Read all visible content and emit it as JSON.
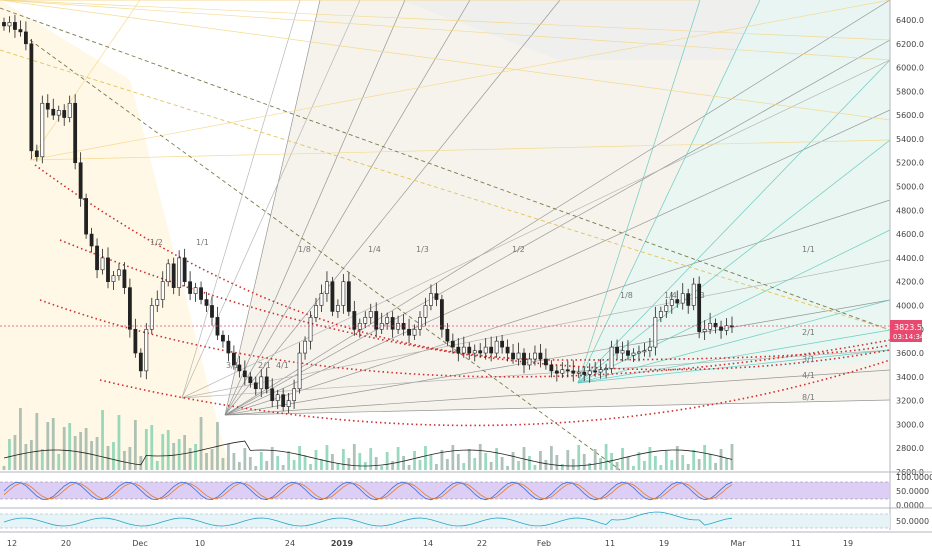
{
  "chart_data": {
    "type": "candlestick",
    "title": "",
    "price_axis": {
      "ticks": [
        "6400.0",
        "6200.0",
        "6000.0",
        "5800.0",
        "5600.0",
        "5400.0",
        "5200.0",
        "5000.0",
        "4800.0",
        "4600.0",
        "4400.0",
        "4200.0",
        "4000.0",
        "3800.0",
        "3600.0",
        "3400.0",
        "3200.0",
        "3000.0",
        "2800.0",
        "2600.0"
      ],
      "range": [
        2600,
        6500
      ],
      "last_price": "3823.5",
      "countdown": "03:14:34",
      "last_price_color": "#e84a6f"
    },
    "time_axis": {
      "ticks": [
        "12",
        "20",
        "Dec",
        "10",
        "24",
        "2019",
        "14",
        "22",
        "Feb",
        "11",
        "19",
        "Mar",
        "11",
        "19"
      ],
      "bold_tick": "2019"
    },
    "candles_close": [
      6350,
      6380,
      6320,
      6300,
      6200,
      5300,
      5250,
      5700,
      5650,
      5600,
      5640,
      5580,
      5700,
      5200,
      4900,
      4600,
      4500,
      4300,
      4400,
      4200,
      4250,
      4300,
      4150,
      3800,
      3600,
      3450,
      3800,
      4000,
      4050,
      4200,
      4350,
      4150,
      4400,
      4200,
      4100,
      4150,
      4050,
      4000,
      3900,
      3750,
      3700,
      3600,
      3500,
      3450,
      3400,
      3350,
      3300,
      3400,
      3300,
      3200,
      3250,
      3150,
      3200,
      3300,
      3600,
      3700,
      3900,
      4000,
      4100,
      4200,
      3950,
      4000,
      4200,
      3950,
      3800,
      3850,
      3900,
      3950,
      3800,
      3850,
      3900,
      3800,
      3850,
      3800,
      3750,
      3800,
      3900,
      4000,
      4100,
      4050,
      3800,
      3700,
      3650,
      3600,
      3650,
      3600,
      3620,
      3600,
      3650,
      3600,
      3700,
      3650,
      3600,
      3550,
      3600,
      3500,
      3550,
      3600,
      3550,
      3500,
      3450,
      3430,
      3460,
      3450,
      3430,
      3440,
      3420,
      3450,
      3440,
      3460,
      3470,
      3650,
      3600,
      3620,
      3580,
      3600,
      3610,
      3620,
      3650,
      3900,
      3950,
      4000,
      4050,
      4020,
      4100,
      4000,
      4180,
      3780,
      3800,
      3850,
      3820,
      3790,
      3830,
      3823.5
    ],
    "fan_labels": [
      "1/8",
      "1/4",
      "1/3",
      "1/2",
      "1/1",
      "1/8",
      "1/4",
      "1/3",
      "2/1",
      "3/1",
      "4/1",
      "8/1",
      "1/2",
      "1/1",
      "2/1",
      "3/1",
      "4/1"
    ],
    "stochastic_axis": [
      "100.0000",
      "50.0000",
      "0.0000"
    ],
    "rsi_axis": [
      "50.0000"
    ],
    "stochastic_last": [
      62,
      55
    ],
    "rsi_last": 52
  }
}
